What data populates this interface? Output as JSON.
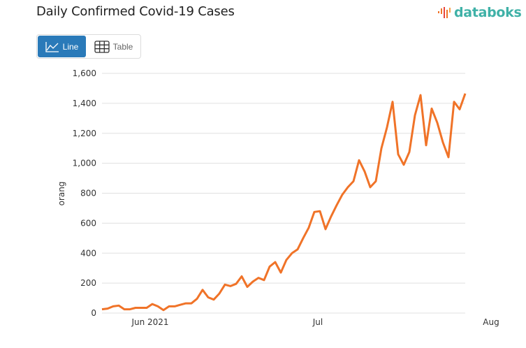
{
  "header": {
    "title": "Daily Confirmed Covid-19 Cases",
    "brand": "databoks"
  },
  "toggle": {
    "line_label": "Line",
    "table_label": "Table",
    "active": "Line",
    "line_icon": "line-chart-icon",
    "table_icon": "table-grid-icon"
  },
  "colors": {
    "series": "#f07328",
    "active_button": "#2a7ab9",
    "brand": "#3fb1a7",
    "grid": "#e0e0e0"
  },
  "chart_data": {
    "type": "line",
    "title": "Daily Confirmed Covid-19 Cases",
    "xlabel": "",
    "ylabel": "orang",
    "ylim": [
      0,
      1600
    ],
    "yticks": [
      0,
      200,
      400,
      600,
      800,
      1000,
      1200,
      1400,
      1600
    ],
    "ytick_labels": [
      "0",
      "200",
      "400",
      "600",
      "800",
      "1,000",
      "1,200",
      "1,400",
      "1,600"
    ],
    "xtick_labels": [
      {
        "label": "Jun 2021",
        "index": 9
      },
      {
        "label": "Jul",
        "index": 39
      },
      {
        "label": "Aug",
        "index": 70
      }
    ],
    "x_start": "2021-05-23",
    "grid": true,
    "legend": "none",
    "series": [
      {
        "name": "Daily Confirmed Cases",
        "values": [
          25,
          30,
          45,
          50,
          25,
          25,
          35,
          35,
          35,
          60,
          45,
          20,
          45,
          45,
          55,
          65,
          65,
          95,
          155,
          105,
          90,
          130,
          190,
          180,
          195,
          245,
          175,
          210,
          235,
          220,
          310,
          340,
          270,
          355,
          400,
          425,
          500,
          570,
          675,
          680,
          560,
          645,
          720,
          790,
          840,
          880,
          1020,
          945,
          840,
          880,
          1100,
          1240,
          1410,
          1060,
          990,
          1075,
          1320,
          1455,
          1120,
          1365,
          1270,
          1140,
          1040,
          1410,
          1360,
          1465
        ]
      }
    ]
  }
}
